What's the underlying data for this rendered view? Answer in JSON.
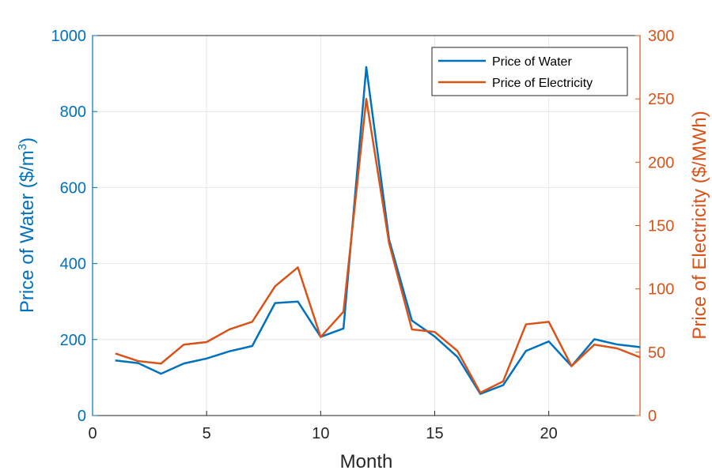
{
  "chart_data": {
    "type": "line",
    "xlabel": "Month",
    "ylabel_left_prefix": "Price of Water ($/m",
    "ylabel_left_superscript": "3",
    "ylabel_left_suffix": ")",
    "ylabel_right": "Price of Electricity ($/MWh)",
    "xlim": [
      0,
      24
    ],
    "ylim_left": [
      0,
      1000
    ],
    "ylim_right": [
      0,
      300
    ],
    "x_ticks": [
      0,
      5,
      10,
      15,
      20
    ],
    "y_left_ticks": [
      0,
      200,
      400,
      600,
      800,
      1000
    ],
    "y_right_ticks": [
      0,
      50,
      100,
      150,
      200,
      250,
      300
    ],
    "grid": true,
    "legend_position": "top-right",
    "colors": {
      "water": "#0072BD",
      "electricity": "#D95319"
    },
    "x": [
      1,
      2,
      3,
      4,
      5,
      6,
      7,
      8,
      9,
      10,
      11,
      12,
      13,
      14,
      15,
      16,
      17,
      18,
      19,
      20,
      21,
      22,
      23,
      24
    ],
    "series": [
      {
        "name": "Price of Water",
        "axis": "left",
        "values": [
          145,
          138,
          110,
          137,
          150,
          169,
          183,
          296,
          300,
          207,
          229,
          917,
          463,
          250,
          208,
          154,
          57,
          80,
          170,
          195,
          130,
          201,
          187,
          180
        ]
      },
      {
        "name": "Price of Electricity",
        "axis": "right",
        "values": [
          49,
          43,
          41,
          56,
          58,
          68,
          74,
          102,
          117,
          62,
          82,
          250,
          136,
          68,
          66,
          51,
          18,
          27,
          72,
          74,
          39,
          56,
          53,
          46
        ]
      }
    ]
  }
}
